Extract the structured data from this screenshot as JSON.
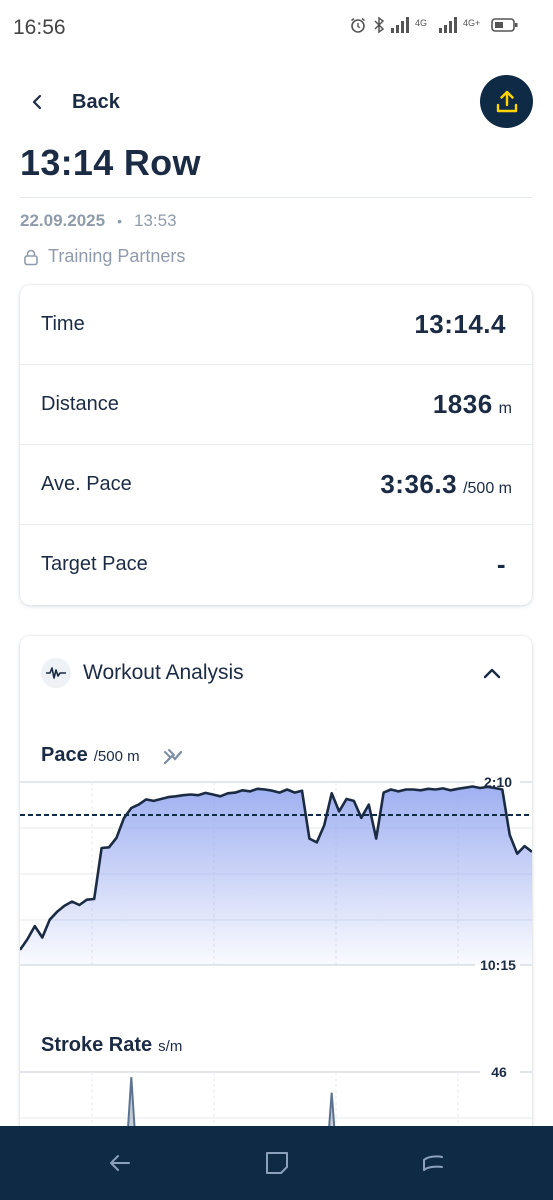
{
  "status_bar": {
    "time": "16:56",
    "net1": "4G",
    "net2": "4G+"
  },
  "header": {
    "back_label": "Back"
  },
  "workout": {
    "title": "13:14 Row",
    "date": "22.09.2025",
    "time": "13:53",
    "visibility": "Training Partners"
  },
  "stats": [
    {
      "label": "Time",
      "value": "13:14.4",
      "unit": ""
    },
    {
      "label": "Distance",
      "value": "1836",
      "unit": "m"
    },
    {
      "label": "Ave. Pace",
      "value": "3:36.3",
      "unit": "/500 m"
    },
    {
      "label": "Target Pace",
      "value": "-",
      "unit": ""
    }
  ],
  "analysis": {
    "title": "Workout Analysis",
    "pace_title": "Pace",
    "pace_unit": "/500 m",
    "stroke_title": "Stroke Rate",
    "stroke_unit": "s/m"
  },
  "chart_data": [
    {
      "type": "area",
      "title": "Pace",
      "ylabel": "/500 m",
      "y_tick_labels": [
        "2:10",
        "10:15"
      ],
      "y_axis_inverted": true,
      "target_line": true,
      "series": [
        {
          "values": [
            575,
            547,
            512,
            542,
            495,
            474,
            458,
            447,
            456,
            442,
            440,
            305,
            303,
            278,
            226,
            199,
            190,
            176,
            180,
            175,
            170,
            168,
            165,
            163,
            165,
            159,
            163,
            168,
            160,
            158,
            152,
            155,
            148,
            150,
            153,
            158,
            150,
            158,
            153,
            280,
            290,
            245,
            160,
            208,
            175,
            180,
            225,
            190,
            280,
            158,
            150,
            155,
            150,
            150,
            152,
            148,
            150,
            147,
            152,
            148,
            145,
            142,
            146,
            143,
            146,
            150,
            270,
            320,
            300,
            315
          ]
        }
      ],
      "color": "#1b2b44",
      "fill": "#8fa2ee"
    },
    {
      "type": "area",
      "title": "Stroke Rate",
      "ylabel": "s/m",
      "y_tick_labels": [
        "46"
      ],
      "series": [
        {
          "values": [
            0,
            0,
            0,
            0,
            0,
            0,
            0,
            0,
            0,
            0,
            0,
            0,
            0,
            0,
            0,
            44,
            0,
            0,
            0,
            0,
            0,
            0,
            0,
            0,
            0,
            0,
            0,
            0,
            0,
            0,
            0,
            0,
            0,
            0,
            0,
            0,
            0,
            0,
            0,
            0,
            0,
            0,
            38,
            0,
            0,
            0,
            0,
            0,
            0,
            0,
            0,
            0,
            0,
            0,
            0,
            0,
            0,
            0,
            0,
            0,
            0,
            0,
            0,
            0,
            0,
            0,
            0,
            0,
            0,
            0
          ]
        }
      ],
      "color": "#5d7391"
    }
  ],
  "colors": {
    "navy": "#0f2a45",
    "accent": "#ffd400",
    "muted": "#8f9bab",
    "text": "#1b2b44"
  }
}
